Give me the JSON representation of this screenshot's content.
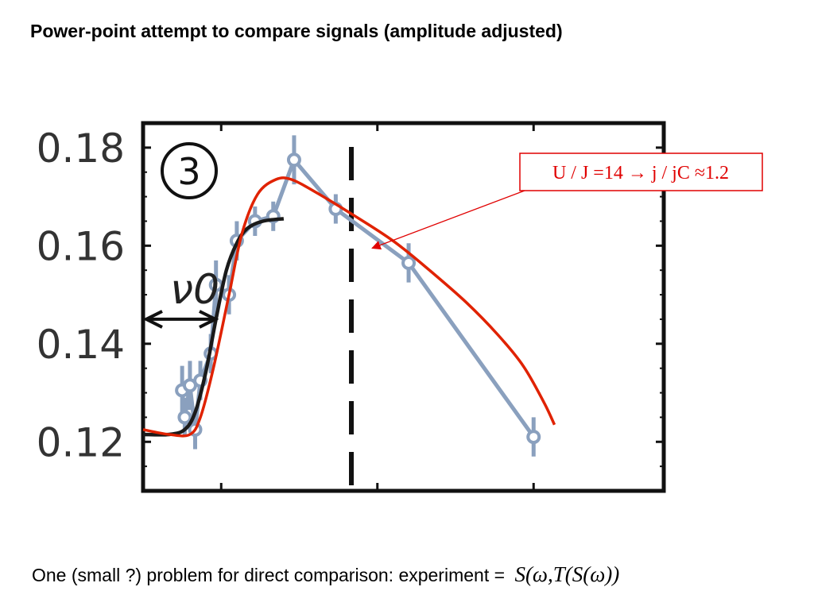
{
  "slide": {
    "title": "Power-point  attempt to compare signals (amplitude adjusted)",
    "footer_text": "One (small ?) problem for direct comparison: experiment =",
    "footer_formula": "S(ω,T(S(ω))"
  },
  "chart_data": {
    "type": "line",
    "title": "",
    "xlabel": "",
    "ylabel": "",
    "xlim": [
      0,
      10
    ],
    "ylim": [
      0.11,
      0.185
    ],
    "y_ticks": [
      0.12,
      0.14,
      0.16,
      0.18
    ],
    "y_tick_labels": [
      "0.12",
      "0.14",
      "0.16",
      "0.18"
    ],
    "x_ticks": [
      0,
      1.5,
      4.5,
      7.5,
      10
    ],
    "grid": false,
    "panel_label": "3",
    "threshold_label": "ν0",
    "threshold_x": [
      0,
      1.45
    ],
    "threshold_y": 0.145,
    "dashed_line_x": 4.0,
    "annotation": {
      "text": "U / J =14  →  j / jC ≈1.2",
      "points_to": [
        4.4,
        0.1595
      ]
    },
    "colors": {
      "experiment": "#8aa0be",
      "fit_black": "#1a1a1a",
      "theory_red": "#e02200",
      "annotation": "#e00000",
      "frame": "#111111"
    },
    "series": [
      {
        "kind": "experiment",
        "points": [
          {
            "x": 0.75,
            "y": 0.1305,
            "err": 0.005
          },
          {
            "x": 0.8,
            "y": 0.125,
            "err": 0.004
          },
          {
            "x": 0.9,
            "y": 0.1315,
            "err": 0.005
          },
          {
            "x": 1.0,
            "y": 0.1225,
            "err": 0.004
          },
          {
            "x": 1.1,
            "y": 0.1325,
            "err": 0.004
          },
          {
            "x": 1.3,
            "y": 0.138,
            "err": 0.004
          },
          {
            "x": 1.4,
            "y": 0.152,
            "err": 0.005
          },
          {
            "x": 1.65,
            "y": 0.15,
            "err": 0.004
          },
          {
            "x": 1.8,
            "y": 0.161,
            "err": 0.004
          },
          {
            "x": 2.15,
            "y": 0.165,
            "err": 0.003
          },
          {
            "x": 2.5,
            "y": 0.166,
            "err": 0.003
          },
          {
            "x": 2.9,
            "y": 0.1775,
            "err": 0.005
          },
          {
            "x": 3.7,
            "y": 0.1675,
            "err": 0.003
          },
          {
            "x": 5.1,
            "y": 0.1565,
            "err": 0.004
          },
          {
            "x": 7.5,
            "y": 0.121,
            "err": 0.004
          }
        ]
      },
      {
        "kind": "fit",
        "points": [
          [
            0,
            0.1215
          ],
          [
            0.5,
            0.1215
          ],
          [
            0.8,
            0.1225
          ],
          [
            1.0,
            0.126
          ],
          [
            1.2,
            0.134
          ],
          [
            1.4,
            0.145
          ],
          [
            1.6,
            0.155
          ],
          [
            1.8,
            0.1605
          ],
          [
            2.0,
            0.1635
          ],
          [
            2.3,
            0.165
          ],
          [
            2.7,
            0.1655
          ]
        ]
      },
      {
        "kind": "theory",
        "points": [
          [
            0,
            0.1225
          ],
          [
            0.5,
            0.1215
          ],
          [
            0.9,
            0.1215
          ],
          [
            1.1,
            0.125
          ],
          [
            1.35,
            0.135
          ],
          [
            1.65,
            0.15
          ],
          [
            1.9,
            0.1625
          ],
          [
            2.2,
            0.1705
          ],
          [
            2.55,
            0.1735
          ],
          [
            2.85,
            0.1735
          ],
          [
            3.3,
            0.171
          ],
          [
            4.0,
            0.1665
          ],
          [
            4.8,
            0.161
          ],
          [
            5.5,
            0.155
          ],
          [
            6.2,
            0.1485
          ],
          [
            6.8,
            0.142
          ],
          [
            7.3,
            0.1355
          ],
          [
            7.7,
            0.128
          ],
          [
            7.9,
            0.1235
          ]
        ]
      }
    ]
  }
}
